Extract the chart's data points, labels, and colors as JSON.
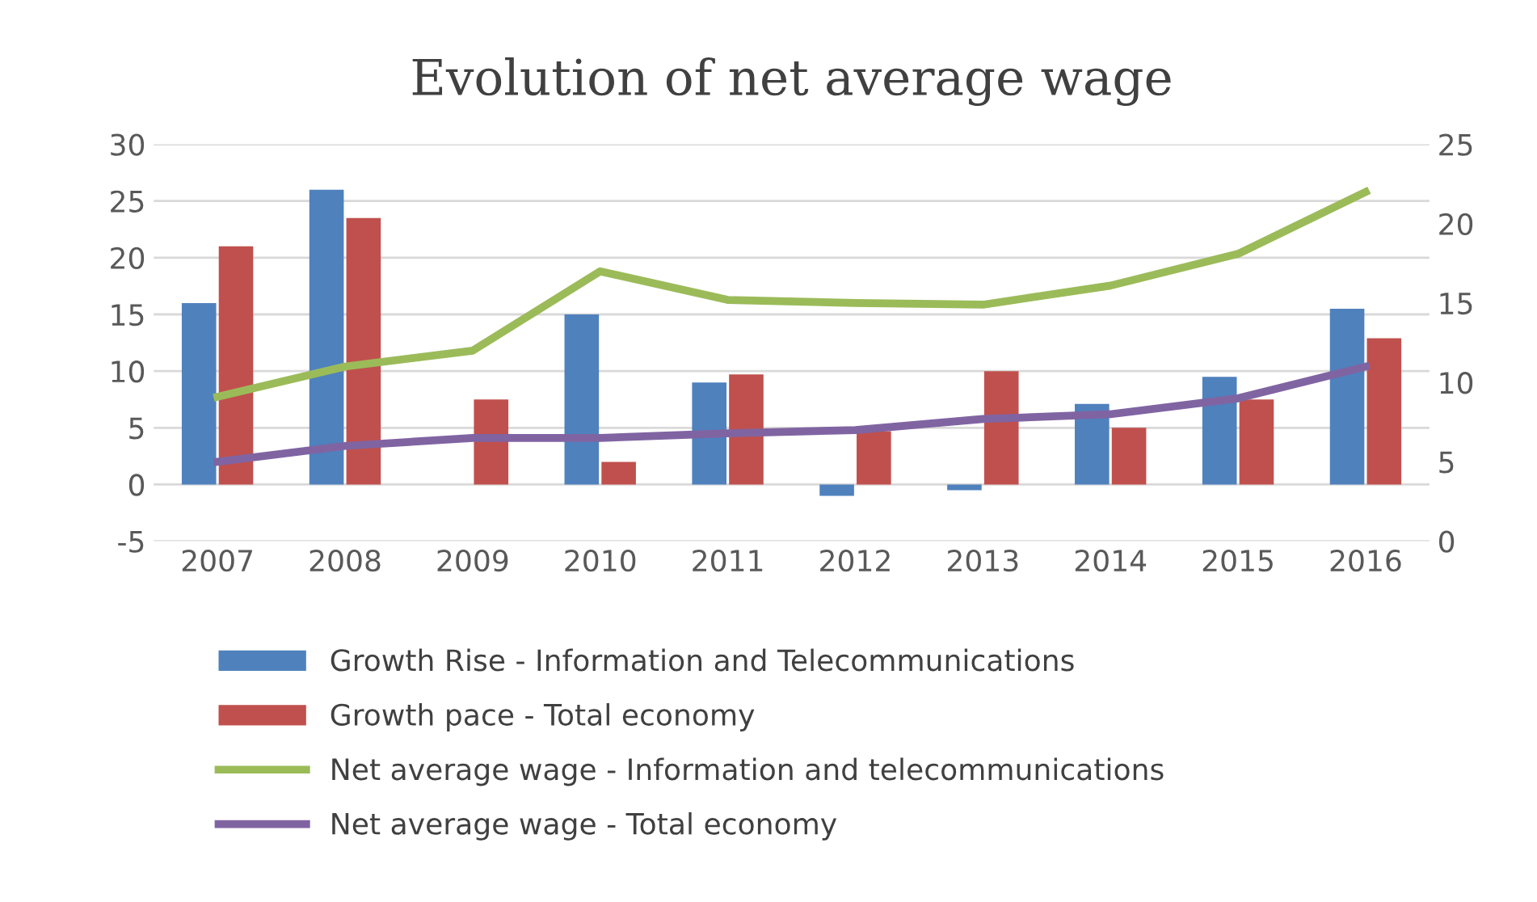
{
  "chart_data": {
    "type": "bar",
    "title": "Evolution of net average wage",
    "categories": [
      "2007",
      "2008",
      "2009",
      "2010",
      "2011",
      "2012",
      "2013",
      "2014",
      "2015",
      "2016"
    ],
    "series": [
      {
        "name": "Growth Rise - Information and Telecommunications",
        "color": "#4f81bd",
        "values": [
          16,
          26,
          null,
          15,
          9,
          -1,
          -0.5,
          7.1,
          9.5,
          15.5
        ]
      },
      {
        "name": "Growth pace - Total economy",
        "color": "#c0504d",
        "values": [
          21,
          23.5,
          7.5,
          2,
          9.7,
          4.7,
          10,
          5,
          7.5,
          12.9
        ]
      },
      {
        "name": "Net average wage - Information and telecommunications",
        "type": "line",
        "axis": "y2",
        "color": "#9bbb59",
        "values": [
          9.1,
          11,
          12,
          17,
          15.2,
          15,
          14.9,
          16.1,
          18.1,
          22
        ]
      },
      {
        "name": "Net average wage - Total economy",
        "type": "line",
        "axis": "y2",
        "color": "#8064a2",
        "values": [
          5,
          6,
          6.5,
          6.5,
          6.8,
          7,
          7.7,
          8,
          9,
          11
        ]
      }
    ],
    "ylim": [
      -5,
      30
    ],
    "yticks": [
      -5,
      0,
      5,
      10,
      15,
      20,
      25,
      30
    ],
    "y2lim": [
      0,
      25
    ],
    "y2ticks": [
      0,
      5,
      10,
      15,
      20,
      25
    ],
    "grid": "y",
    "legend": "bottom",
    "marker": "none",
    "line_style": "solid"
  }
}
